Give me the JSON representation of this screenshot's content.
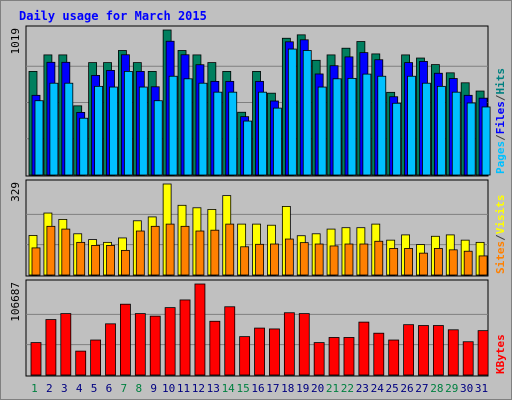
{
  "chart_data": {
    "type": "bar",
    "title": "Daily usage for March 2015",
    "categories": [
      "1",
      "2",
      "3",
      "4",
      "5",
      "6",
      "7",
      "8",
      "9",
      "10",
      "11",
      "12",
      "13",
      "14",
      "15",
      "16",
      "17",
      "18",
      "19",
      "20",
      "21",
      "22",
      "23",
      "24",
      "25",
      "26",
      "27",
      "28",
      "29",
      "30",
      "31"
    ],
    "weekend_days": [
      "1",
      "7",
      "8",
      "14",
      "15",
      "21",
      "22",
      "28",
      "29"
    ],
    "grid": true,
    "panels": [
      {
        "id": "top",
        "scale_max_label": "1019",
        "ymax": 1019,
        "right_labels": [
          {
            "text": "Pages",
            "color": "#00c0ff"
          },
          {
            "text": "/",
            "color": "#404040"
          },
          {
            "text": "Files",
            "color": "#0000ff"
          },
          {
            "text": "/",
            "color": "#404040"
          },
          {
            "text": "Hits",
            "color": "#008080"
          }
        ],
        "series": [
          {
            "name": "Hits",
            "color": "#007f5f",
            "values": [
              728,
              844,
              844,
              486,
              790,
              790,
              875,
              790,
              728,
              1019,
              875,
              844,
              790,
              728,
              441,
              728,
              575,
              961,
              985,
              806,
              844,
              891,
              938,
              851,
              581,
              844,
              822,
              776,
              718,
              648,
              590
            ]
          },
          {
            "name": "Files",
            "color": "#0000ff",
            "values": [
              560,
              792,
              792,
              440,
              700,
              735,
              845,
              728,
              620,
              940,
              845,
              775,
              658,
              658,
              410,
              658,
              520,
              936,
              950,
              710,
              768,
              830,
              860,
              810,
              550,
              790,
              798,
              715,
              678,
              560,
              540
            ]
          },
          {
            "name": "Pages",
            "color": "#00c0ff",
            "values": [
              522,
              645,
              645,
              399,
              623,
              618,
              728,
              618,
              522,
              694,
              676,
              645,
              582,
              582,
              379,
              582,
              470,
              885,
              875,
              618,
              676,
              679,
              709,
              694,
              504,
              694,
              645,
              623,
              582,
              506,
              478
            ]
          }
        ]
      },
      {
        "id": "middle",
        "scale_max_label": "329",
        "ymax": 329,
        "right_labels": [
          {
            "text": "Sites",
            "color": "#ff8000"
          },
          {
            "text": "/",
            "color": "#404040"
          },
          {
            "text": "Visits",
            "color": "#ffff00"
          }
        ],
        "series": [
          {
            "name": "Visits",
            "color": "#ffff00",
            "values": [
              143,
              224,
              201,
              149,
              128,
              118,
              134,
              196,
              210,
              329,
              252,
              243,
              237,
              287,
              184,
              184,
              180,
              248,
              142,
              149,
              166,
              171,
              171,
              184,
              126,
              145,
              110,
              140,
              145,
              126,
              118
            ]
          },
          {
            "name": "Sites",
            "color": "#ff8000",
            "values": [
              98,
              176,
              166,
              118,
              107,
              107,
              89,
              159,
              176,
              184,
              176,
              159,
              162,
              184,
              102,
              111,
              112,
              130,
              117,
              112,
              105,
              112,
              112,
              122,
              96,
              96,
              79,
              96,
              91,
              86,
              69
            ]
          }
        ]
      },
      {
        "id": "bottom",
        "scale_max_label": "106687",
        "ymax": 106687,
        "right_labels": [
          {
            "text": "KBytes",
            "color": "#ff0000"
          }
        ],
        "series": [
          {
            "name": "KBytes",
            "color": "#ff0000",
            "values": [
              38000,
              65000,
              72000,
              28000,
              41000,
              60000,
              83000,
              72000,
              69000,
              79000,
              88000,
              106687,
              63000,
              80000,
              45000,
              55000,
              54000,
              73000,
              72000,
              38000,
              44000,
              44000,
              62000,
              49000,
              41000,
              59000,
              58000,
              58000,
              53000,
              39000,
              52000
            ]
          }
        ]
      }
    ]
  }
}
